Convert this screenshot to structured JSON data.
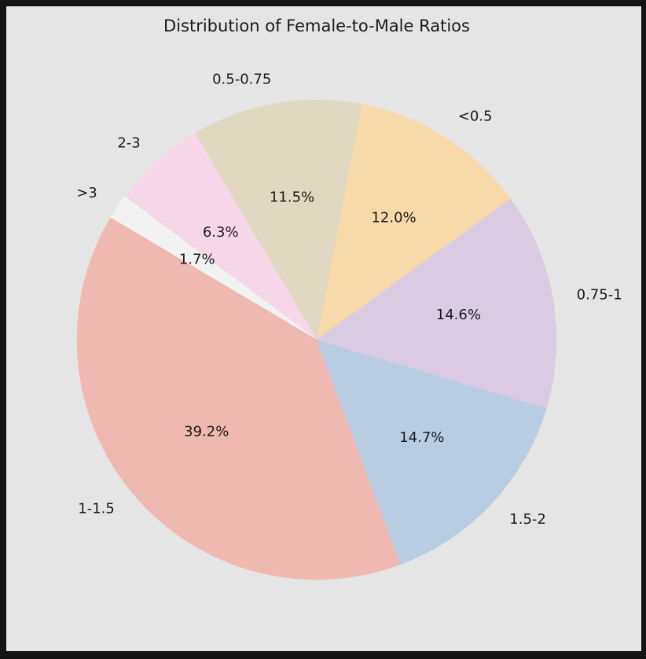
{
  "chart_data": {
    "type": "pie",
    "title": "Distribution of Female-to-Male Ratios",
    "slices": [
      {
        "label": "<0.5",
        "value": 12.0,
        "pct_label": "12.0%",
        "color": "#f8d9aa"
      },
      {
        "label": "0.5-0.75",
        "value": 11.5,
        "pct_label": "11.5%",
        "color": "#e1d8c2"
      },
      {
        "label": "2-3",
        "value": 6.3,
        "pct_label": "6.3%",
        "color": "#f6d7e9"
      },
      {
        "label": ">3",
        "value": 1.7,
        "pct_label": "1.7%",
        "color": "#f2f2f2"
      },
      {
        "label": "1-1.5",
        "value": 39.2,
        "pct_label": "39.2%",
        "color": "#efb8b0"
      },
      {
        "label": "1.5-2",
        "value": 14.7,
        "pct_label": "14.7%",
        "color": "#b8cce2"
      },
      {
        "label": "0.75-1",
        "value": 14.6,
        "pct_label": "14.6%",
        "color": "#dbcbe2"
      }
    ],
    "start_angle_deg": 36,
    "direction": "counterclockwise",
    "background": "#e5e5e5"
  }
}
